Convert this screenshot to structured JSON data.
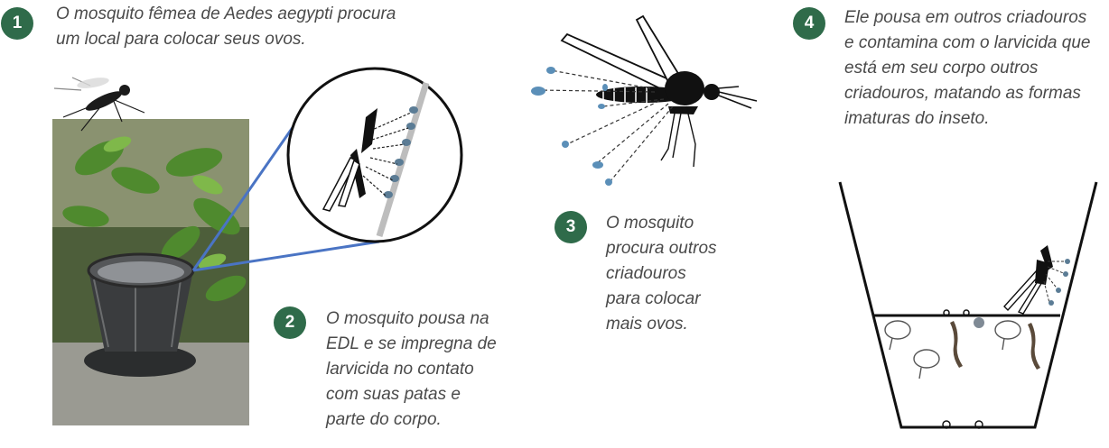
{
  "colors": {
    "badge": "#2f6b4a",
    "text": "#4a4a4a",
    "connector": "#4a74c4",
    "droplet": "#5b8fb8"
  },
  "steps": [
    {
      "number": "1",
      "lines": [
        "O mosquito fêmea de Aedes aegypti procura",
        "um local para colocar seus ovos."
      ]
    },
    {
      "number": "2",
      "lines": [
        "O mosquito pousa na",
        "EDL e se impregna de",
        "larvicida no contato",
        "com suas patas e",
        "parte do corpo."
      ]
    },
    {
      "number": "3",
      "lines": [
        "O mosquito",
        "procura outros",
        "criadouros",
        "para colocar",
        "mais ovos."
      ]
    },
    {
      "number": "4",
      "lines": [
        "Ele pousa em outros criadouros",
        "e contamina com o larvicida que",
        "está em seu corpo outros",
        "criadouros, matando as formas",
        "imaturas do inseto."
      ]
    }
  ],
  "figures": {
    "photo": "trap-photo-with-bucket",
    "zoom": "magnifier-mosquito-on-wall",
    "flying": "large-mosquito-dispersing-droplets",
    "container": "breeding-container-with-larvae"
  }
}
